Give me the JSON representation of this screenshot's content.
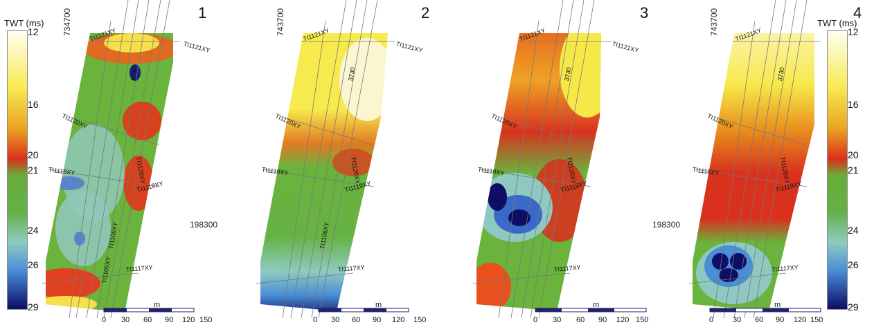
{
  "colorbar": {
    "title": "TWT (ms)",
    "ticks": [
      "12",
      "16",
      "20",
      "21",
      "24",
      "26",
      "29"
    ],
    "tick_values": [
      12,
      16,
      20,
      21,
      24,
      26,
      29
    ],
    "colors": [
      "#fffff0",
      "#f7e84a",
      "#e8a21f",
      "#d8321e",
      "#6fb43c",
      "#55a843",
      "#8ec8c0",
      "#4a8fd6",
      "#101066"
    ]
  },
  "panels": [
    {
      "number": "1",
      "northing": "734700",
      "easting": ""
    },
    {
      "number": "2",
      "northing": "743700",
      "easting": "198300"
    },
    {
      "number": "3",
      "northing": "",
      "easting": ""
    },
    {
      "number": "4",
      "northing": "743700",
      "easting": "198300"
    }
  ],
  "line_labels": {
    "l1121": "TI1121XY",
    "l1120": "TI1120XY",
    "l1119": "TI1119XY",
    "l1118": "TI1118XY",
    "l1117": "TI1117XY",
    "l1106": "TI1106XY",
    "l1105": "TI1105XY",
    "l1108": "TI1108XY",
    "l1107": "TI1107XY",
    "l3730": "3730"
  },
  "scale_bar": {
    "unit": "m",
    "ticks": [
      "0",
      "30",
      "60",
      "90",
      "120",
      "150"
    ]
  }
}
